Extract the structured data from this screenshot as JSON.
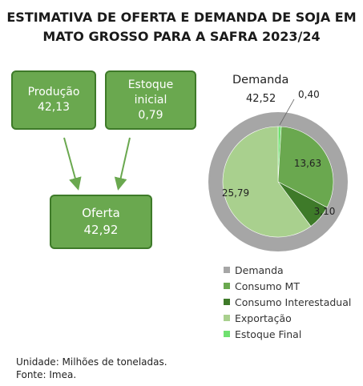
{
  "title_line1": "ESTIMATIVA DE OFERTA E DEMANDA DE SOJA EM",
  "title_line2": "MATO GROSSO PARA A SAFRA 2023/24",
  "boxes": {
    "producao": {
      "label": "Produção",
      "value": "42,13"
    },
    "estoque": {
      "label1": "Estoque",
      "label2": "inicial",
      "value": "0,79"
    },
    "oferta": {
      "label": "Oferta",
      "value": "42,92"
    }
  },
  "demanda": {
    "label": "Demanda",
    "value": "42,52"
  },
  "footer": {
    "unit": "Unidade: Milhões de toneladas.",
    "source": "Fonte: Imea."
  },
  "chart_data": {
    "type": "pie",
    "total": {
      "name": "Demanda",
      "value": 42.52,
      "color": "#a6a6a6"
    },
    "slices": [
      {
        "name": "Estoque Final",
        "value": 0.4,
        "label": "0,40",
        "color": "#6fe06f"
      },
      {
        "name": "Consumo MT",
        "value": 13.63,
        "label": "13,63",
        "color": "#6aa84f"
      },
      {
        "name": "Consumo Interestadual",
        "value": 3.1,
        "label": "3,10",
        "color": "#3e7a29"
      },
      {
        "name": "Exportação",
        "value": 25.79,
        "label": "25,79",
        "color": "#a9d08e"
      }
    ],
    "legend": [
      {
        "name": "Demanda",
        "color": "#a6a6a6"
      },
      {
        "name": "Consumo MT",
        "color": "#6aa84f"
      },
      {
        "name": "Consumo Interestadual",
        "color": "#3e7a29"
      },
      {
        "name": "Exportação",
        "color": "#a9d08e"
      },
      {
        "name": "Estoque Final",
        "color": "#6fe06f"
      }
    ],
    "legend_position": "bottom"
  }
}
